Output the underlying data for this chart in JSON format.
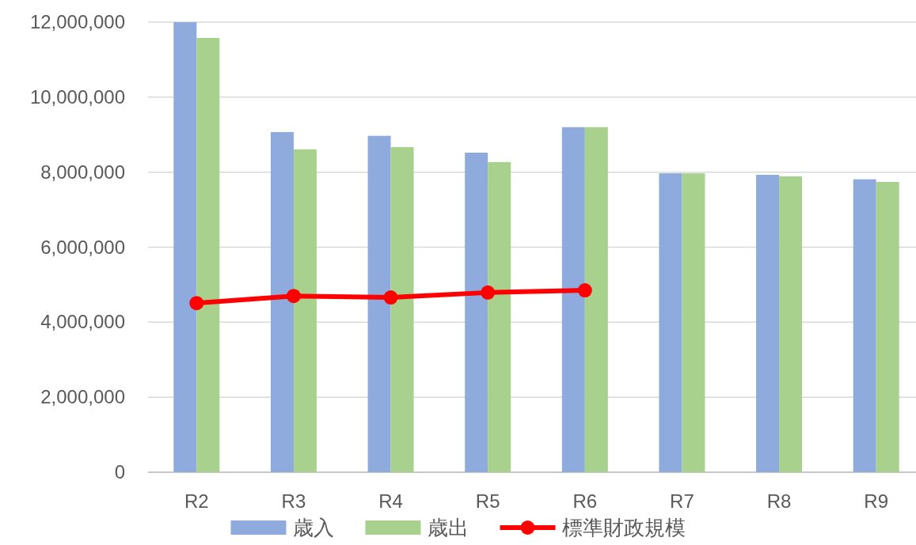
{
  "chart_data": {
    "type": "bar",
    "categories": [
      "R2",
      "R3",
      "R4",
      "R5",
      "R6",
      "R7",
      "R8",
      "R9"
    ],
    "series": [
      {
        "name": "歳入",
        "color": "#8faadc",
        "values": [
          12000000,
          9070000,
          8970000,
          8520000,
          9200000,
          7970000,
          7930000,
          7810000
        ]
      },
      {
        "name": "歳出",
        "color": "#a9d18e",
        "values": [
          11580000,
          8610000,
          8670000,
          8270000,
          9200000,
          7970000,
          7890000,
          7740000
        ]
      },
      {
        "name": "標準財政規模",
        "type": "line",
        "color": "#ff0000",
        "marker": "circle",
        "values": [
          4510000,
          4700000,
          4660000,
          4790000,
          4850000,
          null,
          null,
          null
        ]
      }
    ],
    "ylim": [
      0,
      12000000
    ],
    "yticks": [
      {
        "value": 0,
        "label": "0"
      },
      {
        "value": 2000000,
        "label": "2,000,000"
      },
      {
        "value": 4000000,
        "label": "4,000,000"
      },
      {
        "value": 6000000,
        "label": "6,000,000"
      },
      {
        "value": 8000000,
        "label": "8,000,000"
      },
      {
        "value": 10000000,
        "label": "10,000,000"
      },
      {
        "value": 12000000,
        "label": "12,000,000"
      }
    ],
    "grid": "y",
    "legend": "bottom"
  }
}
